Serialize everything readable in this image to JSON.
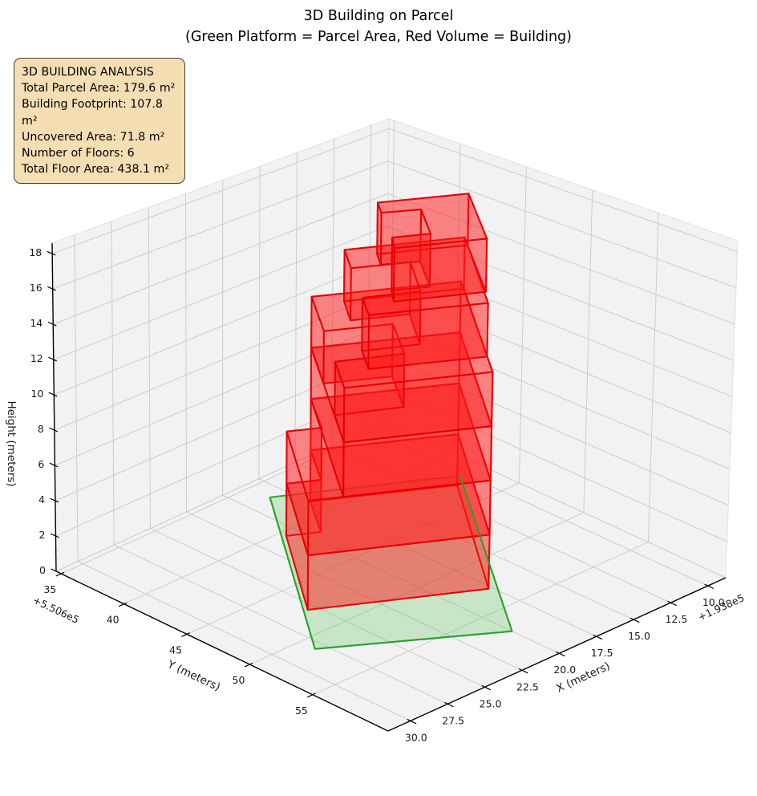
{
  "title": {
    "line1": "3D Building on Parcel",
    "line2": "(Green Platform = Parcel Area, Red Volume = Building)"
  },
  "info_box": {
    "lines": [
      "3D BUILDING ANALYSIS",
      "Total Parcel Area: 179.6 m²",
      "Building Footprint: 107.8 m²",
      "Uncovered Area: 71.8 m²",
      "Number of Floors: 6",
      "Total Floor Area: 438.1 m²"
    ]
  },
  "colors": {
    "pane": "#f2f2f2",
    "pane_edge": "#e0e0e0",
    "grid": "#cccccc",
    "spine": "#000000",
    "text": "#1a1a1a",
    "building_face": "#ff1a1a",
    "building_edge": "#e60000",
    "parcel_face": "#4bbf4b",
    "parcel_edge": "#2ca02c"
  },
  "chart_data": {
    "type": "3d-building",
    "title": "3D Building on Parcel",
    "subtitle": "(Green Platform = Parcel Area, Red Volume = Building)",
    "axes": {
      "x": {
        "label": "X (meters)",
        "offset_text": "+1.938e5",
        "lim": [
          8.8,
          31.5
        ],
        "ticks": [
          10,
          12.5,
          15,
          17.5,
          20,
          22.5,
          25,
          27.5,
          30
        ],
        "tick_labels": [
          "10.0",
          "12.5",
          "15.0",
          "17.5",
          "20.0",
          "22.5",
          "25.0",
          "27.5",
          "30.0"
        ]
      },
      "y": {
        "label": "Y (meters)",
        "offset_text": "+5.506e5",
        "lim": [
          34.6,
          61.0
        ],
        "ticks": [
          35,
          40,
          45,
          50,
          55
        ],
        "tick_labels": [
          "35",
          "40",
          "45",
          "50",
          "55"
        ]
      },
      "z": {
        "label": "Height (meters)",
        "offset_text": "",
        "lim": [
          0,
          18.6
        ],
        "ticks": [
          0,
          2,
          4,
          6,
          8,
          10,
          12,
          14,
          16,
          18
        ],
        "tick_labels": [
          "0",
          "2",
          "4",
          "6",
          "8",
          "10",
          "12",
          "14",
          "16",
          "18"
        ]
      }
    },
    "parcel": {
      "z": 0,
      "area_m2": 179.6,
      "polygon": [
        [
          18.5,
          36.6
        ],
        [
          10.3,
          42.1
        ],
        [
          20.0,
          57.3
        ],
        [
          28.1,
          51.2
        ]
      ]
    },
    "building": {
      "footprint_m2": 107.8,
      "uncovered_m2": 71.8,
      "num_floors": 6,
      "total_floor_area_m2": 438.1,
      "floor_height_m": 3,
      "floors": [
        {
          "z0": 0,
          "z1": 3,
          "footprint": [
            [
              17.4,
              38.5
            ],
            [
              11.1,
              42.8
            ],
            [
              17.7,
              52.8
            ],
            [
              25.5,
              47.6
            ],
            [
              20.8,
              40.5
            ],
            [
              19.3,
              41.5
            ]
          ]
        },
        {
          "z0": 3,
          "z1": 6,
          "footprint": [
            [
              17.4,
              38.5
            ],
            [
              11.1,
              42.8
            ],
            [
              17.7,
              52.8
            ],
            [
              25.5,
              47.6
            ],
            [
              20.8,
              40.5
            ],
            [
              19.3,
              41.5
            ]
          ]
        },
        {
          "z0": 6,
          "z1": 9,
          "footprint": [
            [
              17.4,
              38.5
            ],
            [
              11.1,
              42.8
            ],
            [
              17.7,
              52.8
            ],
            [
              24.0,
              48.6
            ]
          ]
        },
        {
          "z0": 9,
          "z1": 12,
          "footprint": [
            [
              17.4,
              38.5
            ],
            [
              11.1,
              42.8
            ],
            [
              17.7,
              52.8
            ],
            [
              24.0,
              48.6
            ],
            [
              22.1,
              45.7
            ],
            [
              19.1,
              47.6
            ],
            [
              17.0,
              44.3
            ],
            [
              19.9,
              42.3
            ]
          ]
        },
        {
          "z0": 12,
          "z1": 15,
          "footprint": [
            [
              16.7,
              40.2
            ],
            [
              11.6,
              43.6
            ],
            [
              16.6,
              51.1
            ],
            [
              21.6,
              47.7
            ],
            [
              20.3,
              45.7
            ],
            [
              17.8,
              47.3
            ],
            [
              15.6,
              44.0
            ],
            [
              18.1,
              42.3
            ]
          ]
        },
        {
          "z0": 15,
          "z1": 18,
          "footprint": [
            [
              16.0,
              41.9
            ],
            [
              12.2,
              44.5
            ],
            [
              15.7,
              49.9
            ],
            [
              19.6,
              47.3
            ],
            [
              18.7,
              46.1
            ],
            [
              17.1,
              47.2
            ],
            [
              15.2,
              44.3
            ],
            [
              16.8,
              43.1
            ]
          ]
        }
      ]
    }
  }
}
